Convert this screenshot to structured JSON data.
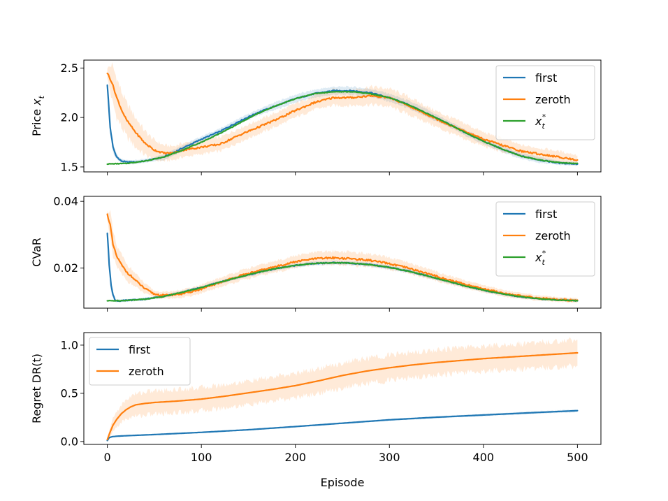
{
  "chart_data": [
    {
      "type": "line",
      "ylabel": "Price x_t",
      "ylim": [
        1.45,
        2.58
      ],
      "xlim": [
        -25,
        525
      ],
      "yticks": [
        1.5,
        2.0,
        2.5
      ],
      "xticks": [
        0,
        100,
        200,
        300,
        400,
        500
      ],
      "show_xticklabels": false,
      "legend": "top-right",
      "series": [
        {
          "name": "first",
          "color": "#1f77b4",
          "x": [
            0,
            3,
            6,
            9,
            12,
            15,
            20,
            25,
            30,
            40,
            50,
            60,
            80,
            100,
            120,
            140,
            160,
            180,
            200,
            220,
            240,
            260,
            280,
            300,
            320,
            340,
            360,
            380,
            400,
            420,
            440,
            460,
            480,
            500
          ],
          "y": [
            2.33,
            1.9,
            1.7,
            1.62,
            1.58,
            1.56,
            1.55,
            1.55,
            1.55,
            1.56,
            1.58,
            1.6,
            1.69,
            1.78,
            1.86,
            1.96,
            2.05,
            2.12,
            2.19,
            2.24,
            2.27,
            2.27,
            2.25,
            2.2,
            2.13,
            2.04,
            1.95,
            1.85,
            1.76,
            1.68,
            1.61,
            1.57,
            1.54,
            1.53
          ],
          "std": [
            0.02,
            0.05,
            0.05,
            0.03,
            0.02,
            0.02,
            0.02,
            0.02,
            0.02,
            0.02,
            0.02,
            0.03,
            0.03,
            0.03,
            0.03,
            0.03,
            0.03,
            0.04,
            0.04,
            0.04,
            0.04,
            0.04,
            0.04,
            0.04,
            0.04,
            0.04,
            0.03,
            0.03,
            0.03,
            0.03,
            0.03,
            0.03,
            0.02,
            0.02
          ]
        },
        {
          "name": "zeroth",
          "color": "#ff7f0e",
          "x": [
            0,
            5,
            10,
            15,
            20,
            30,
            40,
            50,
            60,
            70,
            80,
            100,
            120,
            140,
            160,
            180,
            200,
            220,
            240,
            260,
            280,
            300,
            320,
            340,
            360,
            380,
            400,
            420,
            440,
            460,
            480,
            500
          ],
          "y": [
            2.45,
            2.35,
            2.2,
            2.08,
            1.98,
            1.85,
            1.74,
            1.67,
            1.64,
            1.64,
            1.67,
            1.7,
            1.73,
            1.82,
            1.9,
            1.98,
            2.07,
            2.15,
            2.2,
            2.2,
            2.22,
            2.2,
            2.12,
            2.03,
            1.94,
            1.86,
            1.78,
            1.72,
            1.66,
            1.63,
            1.6,
            1.57
          ],
          "std": [
            0.05,
            0.18,
            0.2,
            0.18,
            0.17,
            0.15,
            0.12,
            0.1,
            0.08,
            0.07,
            0.07,
            0.07,
            0.07,
            0.07,
            0.07,
            0.07,
            0.07,
            0.07,
            0.08,
            0.08,
            0.09,
            0.09,
            0.09,
            0.08,
            0.08,
            0.08,
            0.07,
            0.07,
            0.06,
            0.06,
            0.06,
            0.05
          ]
        },
        {
          "name": "x_t^*",
          "color": "#2ca02c",
          "x": [
            0,
            20,
            40,
            60,
            80,
            100,
            120,
            140,
            160,
            180,
            200,
            220,
            240,
            260,
            280,
            300,
            320,
            340,
            360,
            380,
            400,
            420,
            440,
            460,
            480,
            500
          ],
          "y": [
            1.53,
            1.535,
            1.56,
            1.6,
            1.67,
            1.75,
            1.84,
            1.94,
            2.04,
            2.12,
            2.19,
            2.24,
            2.26,
            2.26,
            2.24,
            2.2,
            2.13,
            2.04,
            1.95,
            1.85,
            1.76,
            1.68,
            1.61,
            1.57,
            1.545,
            1.535
          ]
        }
      ]
    },
    {
      "type": "line",
      "ylabel": "CVaR",
      "ylim": [
        0.008,
        0.0415
      ],
      "xlim": [
        -25,
        525
      ],
      "yticks": [
        0.02,
        0.04
      ],
      "ytick_labels": [
        "0.02",
        "0.04"
      ],
      "xticks": [
        0,
        100,
        200,
        300,
        400,
        500
      ],
      "show_xticklabels": false,
      "legend": "top-right",
      "series": [
        {
          "name": "first",
          "color": "#1f77b4",
          "x": [
            0,
            2,
            4,
            6,
            8,
            10,
            15,
            20,
            40,
            60,
            80,
            100,
            120,
            140,
            160,
            180,
            200,
            220,
            240,
            260,
            280,
            300,
            320,
            340,
            360,
            380,
            400,
            420,
            440,
            460,
            480,
            500
          ],
          "y": [
            0.0305,
            0.021,
            0.015,
            0.012,
            0.0105,
            0.0102,
            0.0102,
            0.0103,
            0.0107,
            0.0115,
            0.0128,
            0.0142,
            0.0158,
            0.0173,
            0.0187,
            0.0199,
            0.0208,
            0.0214,
            0.0216,
            0.0215,
            0.021,
            0.0202,
            0.0191,
            0.0177,
            0.0162,
            0.0147,
            0.0134,
            0.0123,
            0.0114,
            0.0108,
            0.0105,
            0.0103
          ],
          "std": [
            0.001,
            0.002,
            0.002,
            0.001,
            0.0005,
            0.0004,
            0.0004,
            0.0004,
            0.0004,
            0.0004,
            0.0005,
            0.0005,
            0.0005,
            0.0005,
            0.0006,
            0.0006,
            0.0006,
            0.0006,
            0.0006,
            0.0006,
            0.0006,
            0.0006,
            0.0006,
            0.0006,
            0.0005,
            0.0005,
            0.0005,
            0.0005,
            0.0004,
            0.0004,
            0.0004,
            0.0004
          ]
        },
        {
          "name": "zeroth",
          "color": "#ff7f0e",
          "x": [
            0,
            3,
            6,
            10,
            15,
            20,
            30,
            40,
            50,
            60,
            80,
            100,
            120,
            140,
            160,
            180,
            200,
            220,
            240,
            260,
            280,
            300,
            320,
            340,
            360,
            380,
            400,
            420,
            440,
            460,
            480,
            500
          ],
          "y": [
            0.036,
            0.033,
            0.027,
            0.0235,
            0.021,
            0.019,
            0.0163,
            0.0138,
            0.0122,
            0.0118,
            0.0123,
            0.0137,
            0.0157,
            0.0176,
            0.0191,
            0.0205,
            0.0219,
            0.0228,
            0.0231,
            0.0228,
            0.0223,
            0.0213,
            0.02,
            0.0184,
            0.0167,
            0.0152,
            0.0138,
            0.0126,
            0.0116,
            0.011,
            0.0106,
            0.0103
          ],
          "std": [
            0.001,
            0.004,
            0.004,
            0.003,
            0.003,
            0.0025,
            0.002,
            0.0015,
            0.001,
            0.001,
            0.0012,
            0.0013,
            0.0014,
            0.0015,
            0.0016,
            0.0017,
            0.0018,
            0.0019,
            0.002,
            0.002,
            0.0019,
            0.0018,
            0.0016,
            0.0015,
            0.0013,
            0.0012,
            0.0011,
            0.001,
            0.0009,
            0.0008,
            0.0007,
            0.0007
          ]
        },
        {
          "name": "x_t^*",
          "color": "#2ca02c",
          "x": [
            0,
            20,
            40,
            60,
            80,
            100,
            120,
            140,
            160,
            180,
            200,
            220,
            240,
            260,
            280,
            300,
            320,
            340,
            360,
            380,
            400,
            420,
            440,
            460,
            480,
            500
          ],
          "y": [
            0.0102,
            0.0103,
            0.0107,
            0.0115,
            0.0128,
            0.0142,
            0.0158,
            0.0173,
            0.0187,
            0.0199,
            0.0208,
            0.0214,
            0.0216,
            0.0215,
            0.021,
            0.0202,
            0.0191,
            0.0177,
            0.0162,
            0.0147,
            0.0134,
            0.0123,
            0.0114,
            0.0108,
            0.0104,
            0.0102
          ]
        }
      ]
    },
    {
      "type": "line",
      "ylabel": "Regret DR(t)",
      "xlabel": "Episode",
      "ylim": [
        -0.03,
        1.13
      ],
      "xlim": [
        -25,
        525
      ],
      "yticks": [
        0.0,
        0.5,
        1.0
      ],
      "ytick_labels": [
        "0.0",
        "0.5",
        "1.0"
      ],
      "xticks": [
        0,
        100,
        200,
        300,
        400,
        500
      ],
      "show_xticklabels": true,
      "legend": "top-left",
      "series": [
        {
          "name": "first",
          "color": "#1f77b4",
          "x": [
            0,
            2,
            5,
            10,
            20,
            50,
            100,
            150,
            200,
            250,
            300,
            350,
            400,
            450,
            500
          ],
          "y": [
            0.01,
            0.04,
            0.05,
            0.055,
            0.06,
            0.072,
            0.095,
            0.122,
            0.155,
            0.19,
            0.225,
            0.252,
            0.275,
            0.298,
            0.32
          ],
          "std": [
            0.002,
            0.004,
            0.004,
            0.004,
            0.004,
            0.005,
            0.006,
            0.007,
            0.008,
            0.009,
            0.01,
            0.011,
            0.012,
            0.013,
            0.014
          ]
        },
        {
          "name": "zeroth",
          "color": "#ff7f0e",
          "x": [
            0,
            3,
            6,
            10,
            15,
            20,
            25,
            30,
            40,
            50,
            75,
            100,
            125,
            150,
            175,
            200,
            225,
            250,
            275,
            300,
            325,
            350,
            375,
            400,
            425,
            450,
            475,
            500
          ],
          "y": [
            0.02,
            0.1,
            0.17,
            0.23,
            0.29,
            0.33,
            0.36,
            0.38,
            0.395,
            0.405,
            0.42,
            0.44,
            0.47,
            0.505,
            0.54,
            0.58,
            0.63,
            0.685,
            0.73,
            0.765,
            0.795,
            0.82,
            0.84,
            0.86,
            0.875,
            0.89,
            0.905,
            0.92
          ],
          "std": [
            0.005,
            0.05,
            0.07,
            0.08,
            0.09,
            0.1,
            0.11,
            0.115,
            0.12,
            0.12,
            0.12,
            0.12,
            0.12,
            0.122,
            0.124,
            0.126,
            0.128,
            0.13,
            0.13,
            0.13,
            0.13,
            0.13,
            0.13,
            0.13,
            0.13,
            0.132,
            0.134,
            0.136
          ]
        }
      ]
    }
  ]
}
